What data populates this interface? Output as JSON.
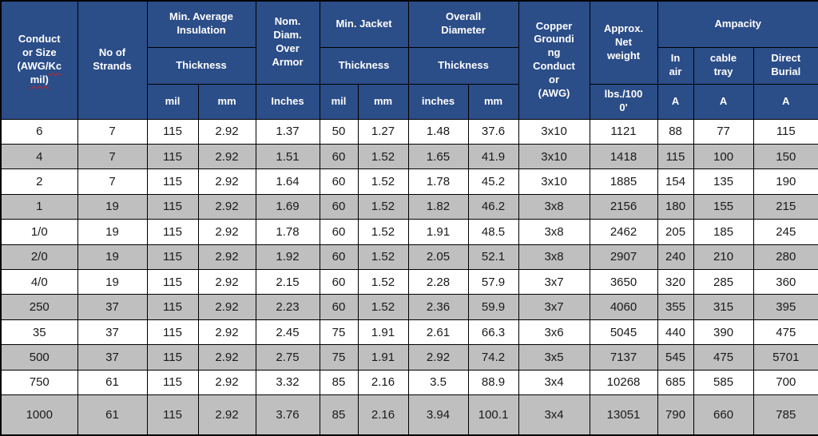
{
  "table": {
    "header": {
      "conductor": {
        "l1": "Conduct",
        "l2": "or Size",
        "l3a": "(AWG/",
        "l3b": "Kc",
        "l4": "mil)"
      },
      "no_of_strands": "No of Strands",
      "min_avg_insulation": "Min. Average\nInsulation",
      "thickness_insulation": "Thickness",
      "mil_insulation": "mil",
      "mm_insulation": "mm",
      "nom_diam_over_armor": "Nom.\nDiam.\nOver\nArmor",
      "inches_armor": "Inches",
      "min_jacket": "Min. Jacket",
      "thickness_jacket": "Thickness",
      "mil_jacket": "mil",
      "mm_jacket": "mm",
      "overall_diameter": "Overall\nDiameter",
      "thickness_overall": "Thickness",
      "inches_overall": "inches",
      "mm_overall": "mm",
      "copper_grounding": "Copper\nGroundi\nng\nConduct\nor\n(AWG)",
      "approx_net_weight": "Approx.\nNet\nweight",
      "lbs_per_1000": "lbs./100\n0'",
      "ampacity": "Ampacity",
      "in_air": "In\nair",
      "cable_tray": "cable\ntray",
      "direct_burial": "Direct\nBurial",
      "amp_unit_air": "A",
      "amp_unit_tray": "A",
      "amp_unit_burial": "A"
    },
    "rows": [
      [
        "6",
        "7",
        "115",
        "2.92",
        "1.37",
        "50",
        "1.27",
        "1.48",
        "37.6",
        "3x10",
        "1121",
        "88",
        "77",
        "115"
      ],
      [
        "4",
        "7",
        "115",
        "2.92",
        "1.51",
        "60",
        "1.52",
        "1.65",
        "41.9",
        "3x10",
        "1418",
        "115",
        "100",
        "150"
      ],
      [
        "2",
        "7",
        "115",
        "2.92",
        "1.64",
        "60",
        "1.52",
        "1.78",
        "45.2",
        "3x10",
        "1885",
        "154",
        "135",
        "190"
      ],
      [
        "1",
        "19",
        "115",
        "2.92",
        "1.69",
        "60",
        "1.52",
        "1.82",
        "46.2",
        "3x8",
        "2156",
        "180",
        "155",
        "215"
      ],
      [
        "1/0",
        "19",
        "115",
        "2.92",
        "1.78",
        "60",
        "1.52",
        "1.91",
        "48.5",
        "3x8",
        "2462",
        "205",
        "185",
        "245"
      ],
      [
        "2/0",
        "19",
        "115",
        "2.92",
        "1.92",
        "60",
        "1.52",
        "2.05",
        "52.1",
        "3x8",
        "2907",
        "240",
        "210",
        "280"
      ],
      [
        "4/0",
        "19",
        "115",
        "2.92",
        "2.15",
        "60",
        "1.52",
        "2.28",
        "57.9",
        "3x7",
        "3650",
        "320",
        "285",
        "360"
      ],
      [
        "250",
        "37",
        "115",
        "2.92",
        "2.23",
        "60",
        "1.52",
        "2.36",
        "59.9",
        "3x7",
        "4060",
        "355",
        "315",
        "395"
      ],
      [
        "35",
        "37",
        "115",
        "2.92",
        "2.45",
        "75",
        "1.91",
        "2.61",
        "66.3",
        "3x6",
        "5045",
        "440",
        "390",
        "475"
      ],
      [
        "500",
        "37",
        "115",
        "2.92",
        "2.75",
        "75",
        "1.91",
        "2.92",
        "74.2",
        "3x5",
        "7137",
        "545",
        "475",
        "5701"
      ],
      [
        "750",
        "61",
        "115",
        "2.92",
        "3.32",
        "85",
        "2.16",
        "3.5",
        "88.9",
        "3x4",
        "10268",
        "685",
        "585",
        "700"
      ],
      [
        "1000",
        "61",
        "115",
        "2.92",
        "3.76",
        "85",
        "2.16",
        "3.94",
        "100.1",
        "3x4",
        "13051",
        "790",
        "660",
        "785"
      ]
    ],
    "colors": {
      "header_bg": "#2B4D88",
      "alt_row_bg": "#BFBFBF",
      "border": "#000000",
      "spellcheck_squiggle": "#cc2222"
    }
  }
}
